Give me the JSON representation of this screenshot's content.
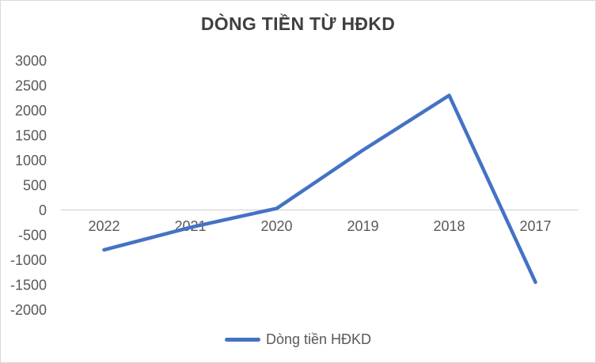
{
  "chart_data": {
    "type": "line",
    "title": "DÒNG TIỀN TỪ HĐKD",
    "categories": [
      "2022",
      "2021",
      "2020",
      "2019",
      "2018",
      "2017"
    ],
    "series": [
      {
        "name": "Dòng tiền HĐKD",
        "values": [
          -800,
          -350,
          30,
          1200,
          2300,
          -1450
        ]
      }
    ],
    "xlabel": "",
    "ylabel": "",
    "ylim": [
      -2000,
      3000
    ],
    "ytick_step": 500,
    "yticks": [
      3000,
      2500,
      2000,
      1500,
      1000,
      500,
      0,
      -500,
      -1000,
      -1500,
      -2000
    ],
    "grid": false,
    "legend_position": "bottom-center",
    "legend_label": "Dòng tiền HĐKD",
    "line_color": "#4472C4",
    "axis_line_color": "#D9D9D9",
    "tick_label_color": "#595959",
    "title_color": "#404040",
    "legend_text_color": "#595959",
    "border_color": "#D9D9D9"
  }
}
